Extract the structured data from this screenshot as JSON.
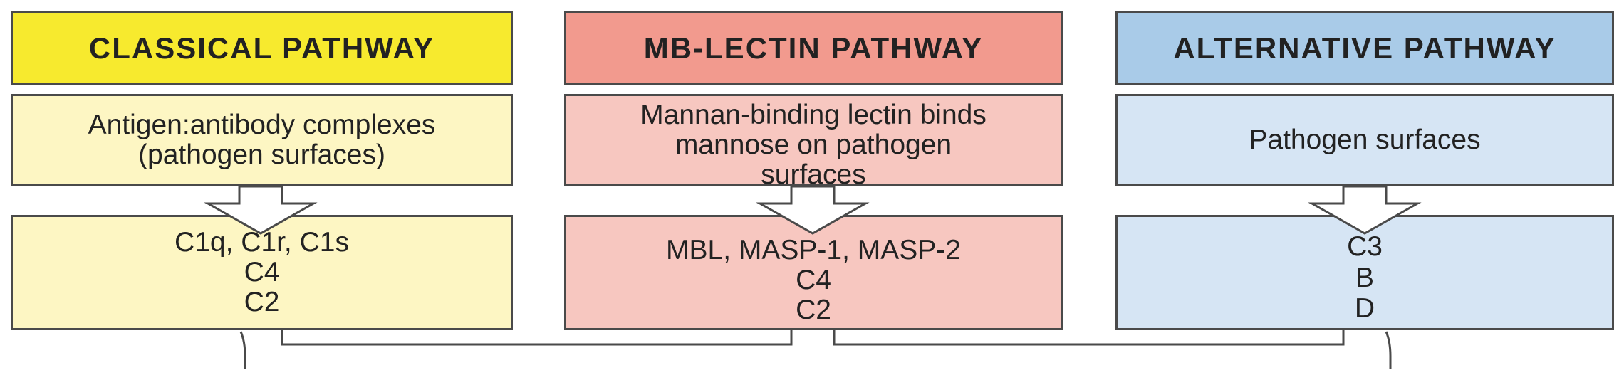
{
  "columns": [
    {
      "header": "CLASSICAL  PATHWAY",
      "source": [
        "Antigen:antibody  complexes",
        "(pathogen surfaces)"
      ],
      "components": [
        "C1q, C1r, C1s",
        "C4",
        "C2"
      ],
      "colors": {
        "header": "#f7ea2e",
        "source": "#fdf6c3",
        "components": "#fdf6c3"
      }
    },
    {
      "header": "MB-LECTIN  PATHWAY",
      "source": [
        "Mannan-binding lectin binds",
        "mannose on pathogen",
        "surfaces"
      ],
      "components": [
        "MBL, MASP-1, MASP-2",
        "C4",
        "C2"
      ],
      "colors": {
        "header": "#f29a8e",
        "source": "#f7c7c0",
        "components": "#f7c7c0"
      }
    },
    {
      "header": "ALTERNATIVE  PATHWAY",
      "source": [
        "Pathogen surfaces"
      ],
      "components": [
        "C3",
        "B",
        "D"
      ],
      "colors": {
        "header": "#a9cbe8",
        "source": "#d6e5f4",
        "components": "#d6e5f4"
      }
    }
  ]
}
